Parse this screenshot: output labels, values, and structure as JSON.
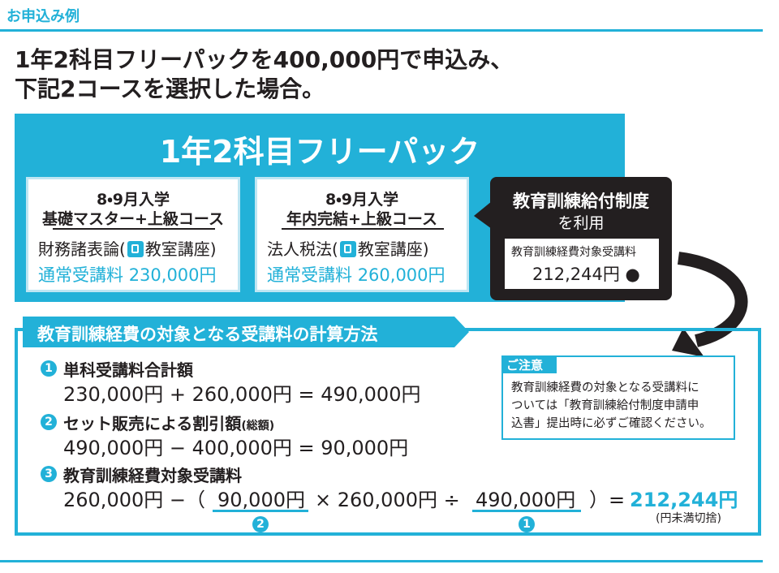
{
  "header": {
    "label": "お申込み例",
    "headline": [
      "1年2科目フリーパックを400,000円で申込み、",
      "下記2コースを選択した場合。"
    ]
  },
  "pack": {
    "title": "1年2科目フリーパック",
    "courses": [
      {
        "intake": "8・9月入学",
        "name": "基礎マスター+上級コース",
        "subject": "財務諸表論(",
        "mode": "教室講座)",
        "fee_label": "通常受講料",
        "fee": "230,000円"
      },
      {
        "intake": "8・9月入学",
        "name": "年内完結+上級コース",
        "subject": "法人税法(",
        "mode": "教室講座)",
        "fee_label": "通常受講料",
        "fee": "260,000円"
      }
    ]
  },
  "benefit": {
    "title": "教育訓練給付制度",
    "subtitle": "を利用",
    "label": "教育訓練経費対象受講料",
    "amount": "212,244円",
    "marker": "●"
  },
  "calculation": {
    "title": "教育訓練経費の対象となる受講料の計算方法",
    "steps": [
      {
        "number": "1",
        "title": "単科受講料合計額",
        "formula": "230,000円 + 260,000円 = 490,000円"
      },
      {
        "number": "2",
        "title": "セット販売による割引額",
        "note": "(総額)",
        "formula": "490,000円 − 400,000円 = 90,000円"
      },
      {
        "number": "3",
        "title": "教育訓練経費対象受講料",
        "formula_parts": [
          "260,000円 −（",
          "90,000円",
          "× 260,000円 ÷",
          "490,000円",
          "）=",
          "212,244円"
        ],
        "refs": [
          "2",
          "1"
        ],
        "footnote": "(円未満切捨)"
      }
    ],
    "caution": {
      "label": "ご注意",
      "lines": [
        "教育訓練経費の対象となる受講料に",
        "ついては「教育訓練給付制度申請申",
        "込書」提出時に必ずご確認ください。"
      ]
    }
  }
}
